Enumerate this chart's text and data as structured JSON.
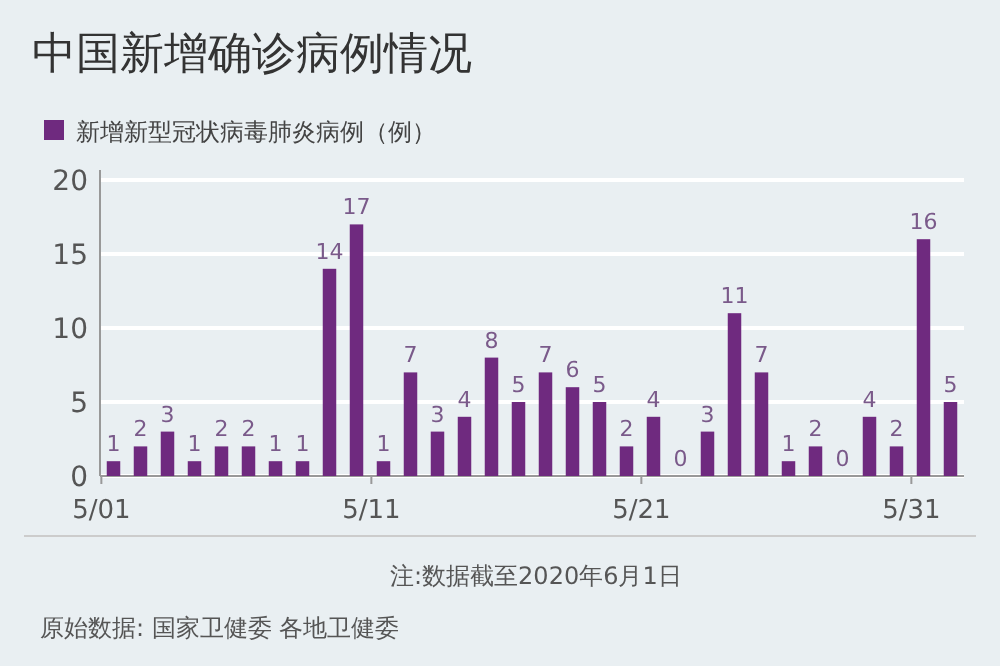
{
  "chart_data": {
    "type": "bar",
    "title": "中国新增确诊病例情况",
    "categories": [
      "5/01",
      null,
      null,
      null,
      null,
      null,
      null,
      null,
      null,
      null,
      "5/11",
      null,
      null,
      null,
      null,
      null,
      null,
      null,
      null,
      null,
      "5/21",
      null,
      null,
      null,
      null,
      null,
      null,
      null,
      null,
      null,
      "5/31",
      null
    ],
    "series": [
      {
        "name": "新增新型冠状病毒肺炎病例（例）",
        "color": "#6f2a7f",
        "values": [
          1,
          2,
          3,
          1,
          2,
          2,
          1,
          1,
          14,
          17,
          1,
          7,
          3,
          4,
          8,
          5,
          7,
          6,
          5,
          2,
          4,
          0,
          3,
          11,
          7,
          1,
          2,
          0,
          4,
          2,
          16,
          5
        ]
      }
    ],
    "ylim": [
      0,
      20
    ],
    "yticks": [
      0,
      5,
      10,
      15,
      20
    ],
    "grid": "y",
    "legend": "top left",
    "data_labels": true,
    "annotations": [
      "注:数据截至2020年6月1日",
      "原始数据: 国家卫健委 各地卫健委"
    ]
  }
}
